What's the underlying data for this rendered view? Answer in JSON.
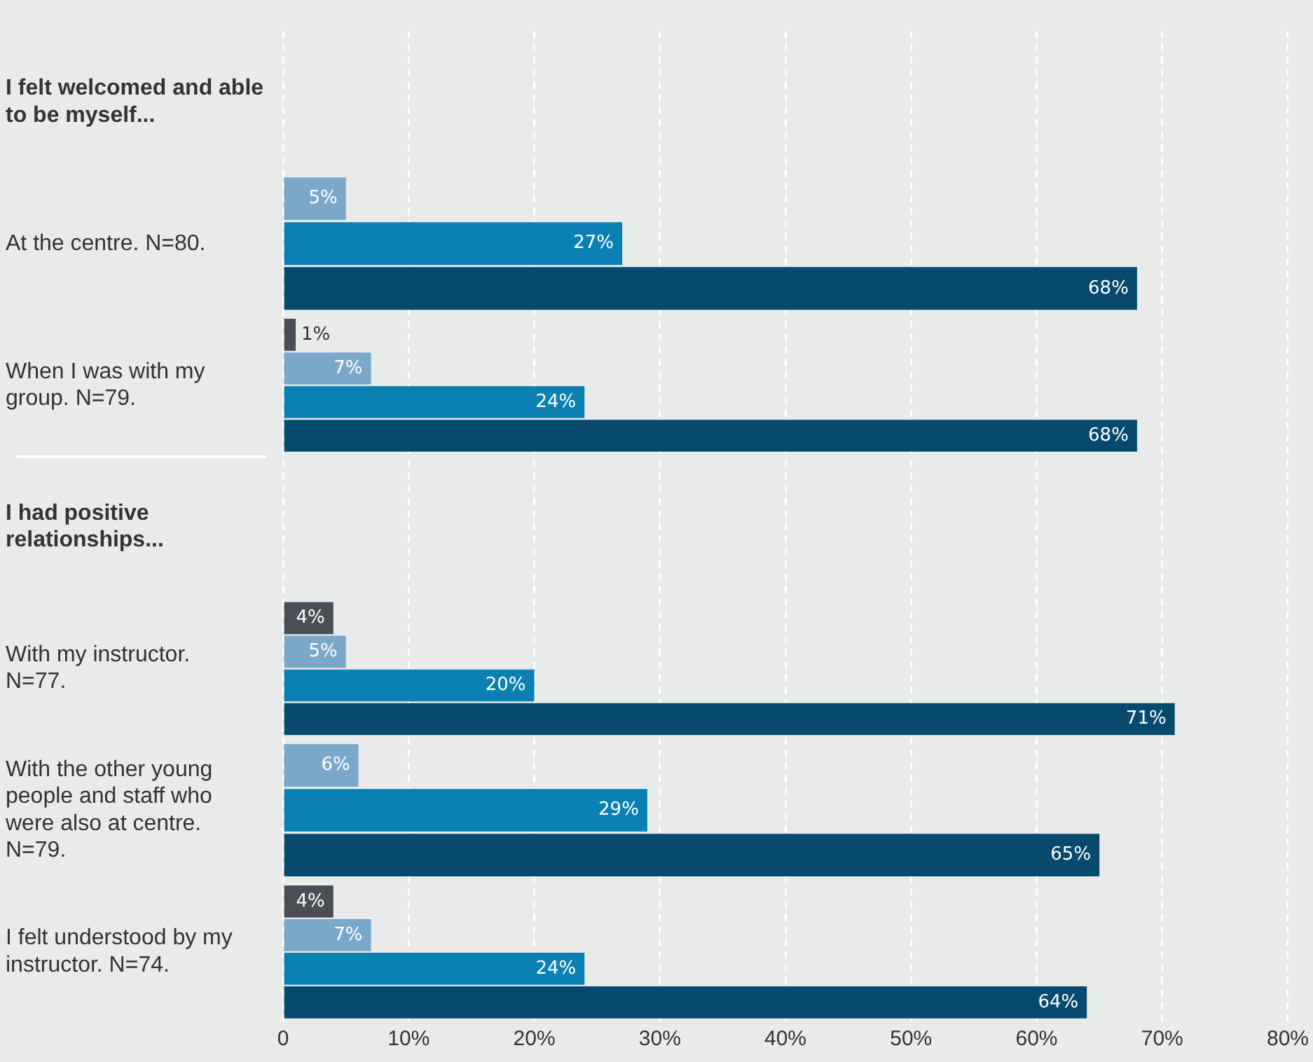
{
  "chart_data": {
    "type": "bar",
    "orientation": "horizontal",
    "categories": [
      "I felt welcomed and able to be myself...",
      "At the centre. N=80.",
      "When I was with my group. N=79.",
      "I had positive relationships...",
      "With my instructor. N=77.",
      "With the other young people and staff who were also at centre. N=79.",
      "I felt understood by my instructor. N=74."
    ],
    "series": [
      {
        "color": "#4a4e55",
        "values": [
          null,
          null,
          1,
          null,
          4,
          null,
          4
        ],
        "value_labels": [
          null,
          null,
          "1%",
          null,
          "4%",
          null,
          "4%"
        ]
      },
      {
        "color": "#7ba7c9",
        "values": [
          null,
          5,
          7,
          null,
          5,
          6,
          7
        ],
        "value_labels": [
          null,
          "5%",
          "7%",
          null,
          "5%",
          "6%",
          "7%"
        ]
      },
      {
        "color": "#0b80b2",
        "values": [
          null,
          27,
          24,
          null,
          20,
          29,
          24
        ],
        "value_labels": [
          null,
          "27%",
          "24%",
          null,
          "20%",
          "29%",
          "24%"
        ]
      },
      {
        "color": "#084a6e",
        "values": [
          null,
          68,
          68,
          null,
          71,
          65,
          64
        ],
        "value_labels": [
          null,
          "68%",
          "68%",
          null,
          "71%",
          "65%",
          "64%"
        ]
      }
    ],
    "xlim": [
      0,
      80
    ],
    "xticks": [
      {
        "value": 0,
        "label": "0"
      },
      {
        "value": 10,
        "label": "10%"
      },
      {
        "value": 20,
        "label": "20%"
      },
      {
        "value": 30,
        "label": "30%"
      },
      {
        "value": 40,
        "label": "40%"
      },
      {
        "value": 50,
        "label": "50%"
      },
      {
        "value": 60,
        "label": "60%"
      },
      {
        "value": 70,
        "label": "70%"
      },
      {
        "value": 80,
        "label": "80%"
      }
    ],
    "grid": "x",
    "legend": false
  }
}
